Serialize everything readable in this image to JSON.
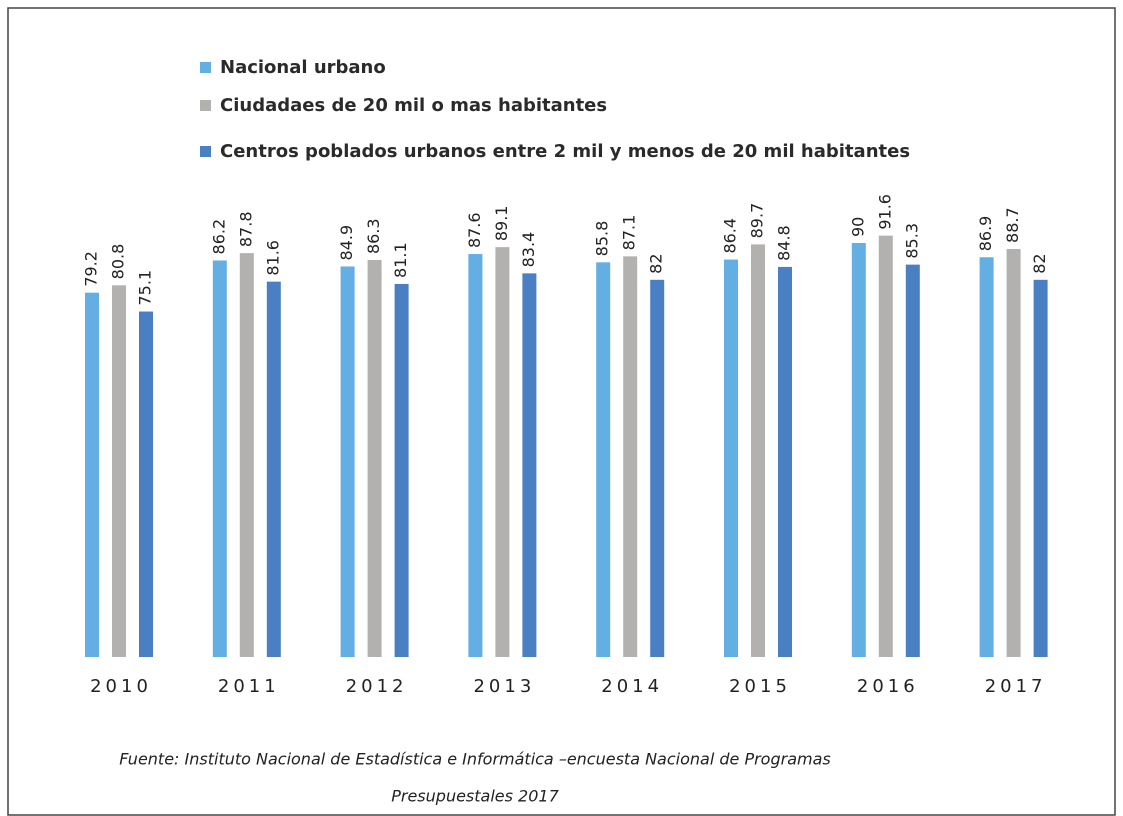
{
  "chart_data": {
    "type": "bar",
    "categories": [
      "2010",
      "2011",
      "2012",
      "2013",
      "2014",
      "2015",
      "2016",
      "2017"
    ],
    "series": [
      {
        "name": "Nacional urbano",
        "color": "#63aee3",
        "values": [
          79.2,
          86.2,
          84.9,
          87.6,
          85.8,
          86.4,
          90,
          86.9
        ]
      },
      {
        "name": "Ciudadaes de 20 mil o mas habitantes",
        "color": "#b3b0b0",
        "values": [
          80.8,
          87.8,
          86.3,
          89.1,
          87.1,
          89.7,
          91.6,
          88.7
        ]
      },
      {
        "name": "Centros poblados urbanos entre 2 mil y menos de 20 mil habitantes",
        "color": "#4a7fc4",
        "values": [
          75.1,
          81.6,
          81.1,
          83.4,
          82,
          84.8,
          85.3,
          82
        ]
      }
    ],
    "ylim": [
      0,
      100
    ],
    "source": [
      "Fuente: Instituto Nacional de Estadística e Informática –encuesta Nacional de Programas",
      "Presupuestales 2017"
    ]
  }
}
